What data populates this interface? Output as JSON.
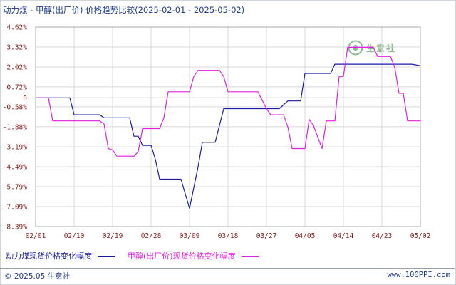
{
  "title": "动力煤 - 甲醇(出厂价) 价格趋势比较(2025-02-01 - 2025-05-02)",
  "logo": {
    "text": "生意社",
    "url_text": "100PPI.COM"
  },
  "footer": {
    "copyright": "© 2025.05 生意社",
    "website": "www.100PPI.com"
  },
  "colors": {
    "coal": "#1a1aa6",
    "methanol": "#e020e0",
    "axis": "#a8a8a8",
    "tick_text": "#8b1a1a",
    "zero_line": "#909090"
  },
  "chart_data": {
    "type": "line",
    "title": "动力煤 - 甲醇(出厂价) 价格趋势比较(2025-02-01 - 2025-05-02)",
    "xlabel": "",
    "ylabel": "",
    "x_ticks": [
      "02/01",
      "02/10",
      "02/19",
      "02/28",
      "03/09",
      "03/18",
      "03/27",
      "04/05",
      "04/14",
      "04/23",
      "05/02"
    ],
    "y_ticks": [
      "4.62%",
      "3.32%",
      "2.02%",
      "0.72%",
      "0",
      "-0.58%",
      "-1.88%",
      "-3.19%",
      "-4.49%",
      "-5.79%",
      "-7.09%",
      "-8.39%"
    ],
    "y_tick_values": [
      4.62,
      3.32,
      2.02,
      0.72,
      0,
      -0.58,
      -1.88,
      -3.19,
      -4.49,
      -5.79,
      -7.09,
      -8.39
    ],
    "ylim": [
      -8.39,
      4.62
    ],
    "grid": true,
    "legend": "bottom",
    "series": [
      {
        "name": "动力煤现货价格变化幅度",
        "color": "#1a1aa6",
        "points": [
          [
            "02/01",
            0
          ],
          [
            "02/09",
            0
          ],
          [
            "02/10",
            -1.1
          ],
          [
            "02/16",
            -1.1
          ],
          [
            "02/17",
            -1.3
          ],
          [
            "02/23",
            -1.3
          ],
          [
            "02/24",
            -2.5
          ],
          [
            "02/25",
            -2.5
          ],
          [
            "02/26",
            -3.1
          ],
          [
            "02/28",
            -3.1
          ],
          [
            "03/01",
            -4.0
          ],
          [
            "03/02",
            -5.3
          ],
          [
            "03/07",
            -5.3
          ],
          [
            "03/09",
            -7.2
          ],
          [
            "03/11",
            -4.5
          ],
          [
            "03/12",
            -2.9
          ],
          [
            "03/15",
            -2.9
          ],
          [
            "03/17",
            -0.7
          ],
          [
            "03/26",
            -0.7
          ],
          [
            "03/30",
            -0.7
          ],
          [
            "04/01",
            -0.2
          ],
          [
            "04/04",
            -0.2
          ],
          [
            "04/05",
            1.6
          ],
          [
            "04/11",
            1.6
          ],
          [
            "04/12",
            2.2
          ],
          [
            "04/30",
            2.2
          ],
          [
            "05/02",
            2.1
          ]
        ]
      },
      {
        "name": "甲醇(出厂价)现货价格变化幅度",
        "color": "#e020e0",
        "points": [
          [
            "02/01",
            0
          ],
          [
            "02/04",
            0
          ],
          [
            "02/05",
            -1.5
          ],
          [
            "02/16",
            -1.5
          ],
          [
            "02/17",
            -1.7
          ],
          [
            "02/18",
            -3.3
          ],
          [
            "02/19",
            -3.4
          ],
          [
            "02/20",
            -3.8
          ],
          [
            "02/24",
            -3.8
          ],
          [
            "02/25",
            -3.5
          ],
          [
            "02/26",
            -2.0
          ],
          [
            "03/02",
            -2.0
          ],
          [
            "03/03",
            -1.3
          ],
          [
            "03/04",
            0.4
          ],
          [
            "03/09",
            0.4
          ],
          [
            "03/10",
            1.4
          ],
          [
            "03/11",
            1.8
          ],
          [
            "03/16",
            1.8
          ],
          [
            "03/17",
            1.4
          ],
          [
            "03/18",
            0.4
          ],
          [
            "03/25",
            0.4
          ],
          [
            "03/27",
            -0.7
          ],
          [
            "03/28",
            -1.1
          ],
          [
            "03/31",
            -1.1
          ],
          [
            "04/01",
            -1.9
          ],
          [
            "04/02",
            -3.3
          ],
          [
            "04/05",
            -3.3
          ],
          [
            "04/06",
            -1.4
          ],
          [
            "04/07",
            -1.8
          ],
          [
            "04/09",
            -3.3
          ],
          [
            "04/10",
            -1.5
          ],
          [
            "04/12",
            -1.5
          ],
          [
            "04/13",
            1.4
          ],
          [
            "04/14",
            1.4
          ],
          [
            "04/15",
            3.3
          ],
          [
            "04/21",
            3.3
          ],
          [
            "04/22",
            2.7
          ],
          [
            "04/25",
            2.7
          ],
          [
            "04/26",
            2.0
          ],
          [
            "04/27",
            0.3
          ],
          [
            "04/28",
            0.3
          ],
          [
            "04/29",
            -1.5
          ],
          [
            "05/02",
            -1.5
          ]
        ]
      }
    ]
  }
}
